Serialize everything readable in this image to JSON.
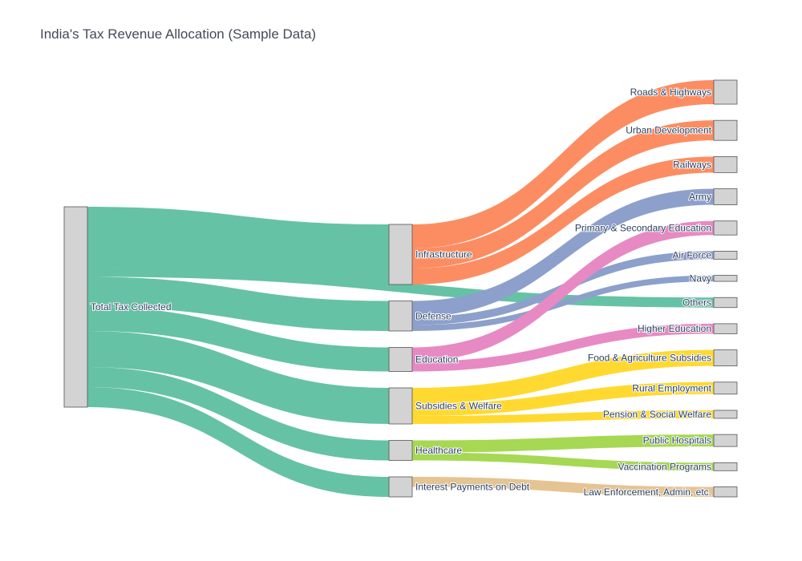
{
  "chart_data": {
    "type": "sankey",
    "title": "India's Tax Revenue Allocation (Sample Data)",
    "colors": {
      "node": "#d3d3d3",
      "node_border": "#555555",
      "source": "#66c2a5",
      "Infrastructure": "#fc8d62",
      "Defense": "#8da0cb",
      "Education": "#e78ac3",
      "Subsidies & Welfare": "#ffd92f",
      "Healthcare": "#a6d854",
      "Interest Payments on Debt": "#e5c494"
    },
    "nodes": [
      "Total Tax Collected",
      "Infrastructure",
      "Defense",
      "Education",
      "Subsidies & Welfare",
      "Healthcare",
      "Interest Payments on Debt",
      "Roads & Highways",
      "Urban Development",
      "Railways",
      "Army",
      "Primary & Secondary Education",
      "Air Force",
      "Navy",
      "Others",
      "Higher Education",
      "Food & Agriculture Subsidies",
      "Rural Employment",
      "Pension & Social Welfare",
      "Public Hospitals",
      "Vaccination Programs",
      "Law Enforcement, Admin, etc."
    ],
    "links": [
      {
        "source": "Total Tax Collected",
        "target": "Infrastructure",
        "value": 30
      },
      {
        "source": "Total Tax Collected",
        "target": "Others",
        "value": 5
      },
      {
        "source": "Total Tax Collected",
        "target": "Defense",
        "value": 15
      },
      {
        "source": "Total Tax Collected",
        "target": "Education",
        "value": 12
      },
      {
        "source": "Total Tax Collected",
        "target": "Subsidies & Welfare",
        "value": 18
      },
      {
        "source": "Total Tax Collected",
        "target": "Healthcare",
        "value": 10
      },
      {
        "source": "Total Tax Collected",
        "target": "Interest Payments on Debt",
        "value": 10
      },
      {
        "source": "Infrastructure",
        "target": "Roads & Highways",
        "value": 12
      },
      {
        "source": "Infrastructure",
        "target": "Urban Development",
        "value": 10
      },
      {
        "source": "Infrastructure",
        "target": "Railways",
        "value": 8
      },
      {
        "source": "Defense",
        "target": "Army",
        "value": 8
      },
      {
        "source": "Defense",
        "target": "Air Force",
        "value": 4
      },
      {
        "source": "Defense",
        "target": "Navy",
        "value": 3
      },
      {
        "source": "Education",
        "target": "Primary & Secondary Education",
        "value": 7
      },
      {
        "source": "Education",
        "target": "Higher Education",
        "value": 5
      },
      {
        "source": "Subsidies & Welfare",
        "target": "Food & Agriculture Subsidies",
        "value": 8
      },
      {
        "source": "Subsidies & Welfare",
        "target": "Rural Employment",
        "value": 6
      },
      {
        "source": "Subsidies & Welfare",
        "target": "Pension & Social Welfare",
        "value": 4
      },
      {
        "source": "Healthcare",
        "target": "Public Hospitals",
        "value": 6
      },
      {
        "source": "Healthcare",
        "target": "Vaccination Programs",
        "value": 4
      },
      {
        "source": "Interest Payments on Debt",
        "target": "Law Enforcement, Admin, etc.",
        "value": 5
      }
    ]
  }
}
